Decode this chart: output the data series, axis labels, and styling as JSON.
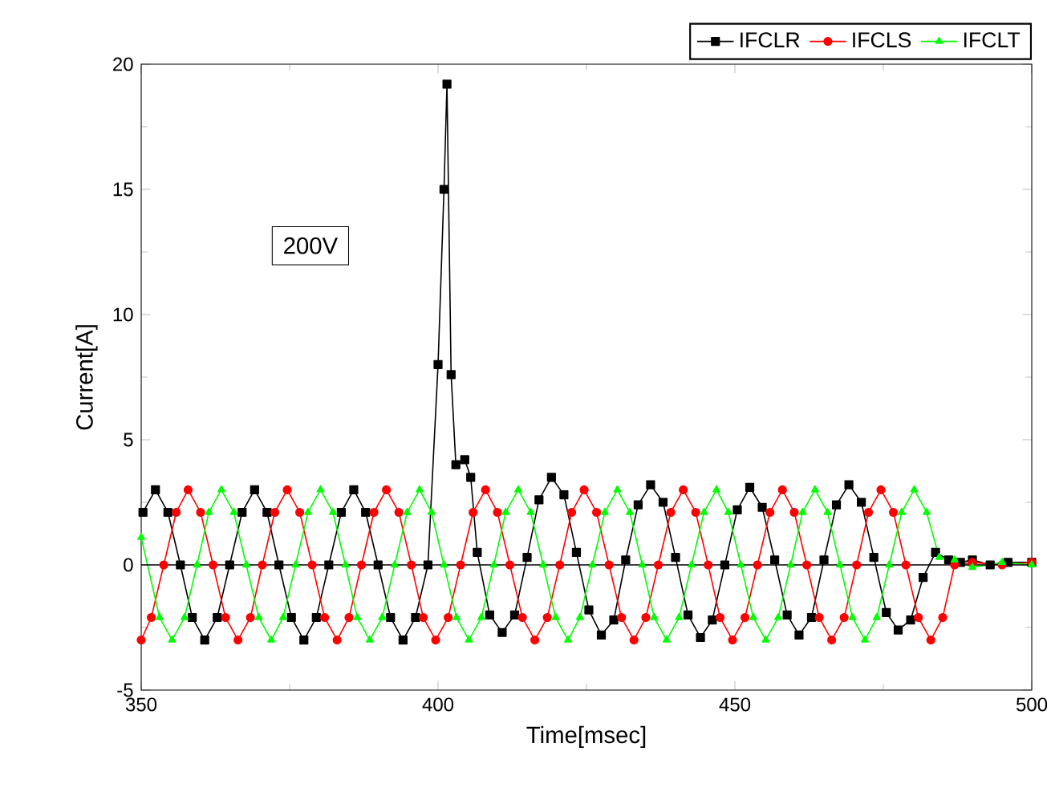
{
  "chart_data": {
    "type": "line",
    "xlabel": "Time[msec]",
    "ylabel": "Current[A]",
    "xlim": [
      350,
      500
    ],
    "xticks": [
      350,
      400,
      450,
      500
    ],
    "ylim": [
      -5,
      20
    ],
    "yticks": [
      -5,
      0,
      5,
      10,
      15,
      20
    ],
    "grid": false,
    "legend": "top right",
    "line_style": "solid",
    "annotations": [
      "200V"
    ],
    "ref_lines": [
      {
        "axis": "y",
        "value": 0,
        "color": "#000000"
      }
    ],
    "series": [
      {
        "name": "IFCLR",
        "color": "#000000",
        "marker": "square",
        "x": [
          350.3,
          352.4,
          354.5,
          356.6,
          358.6,
          360.7,
          362.8,
          364.9,
          367.0,
          369.1,
          371.2,
          373.2,
          375.3,
          377.4,
          379.5,
          381.6,
          383.7,
          385.8,
          387.8,
          389.9,
          392.0,
          394.1,
          396.2,
          398.3,
          400.0,
          401.0,
          401.5,
          402.2,
          403.0,
          404.5,
          405.5,
          406.6,
          408.7,
          410.8,
          412.9,
          415.0,
          417.0,
          419.1,
          421.2,
          423.3,
          425.4,
          427.5,
          429.6,
          431.6,
          433.7,
          435.8,
          437.9,
          440.0,
          442.1,
          444.2,
          446.2,
          448.3,
          450.4,
          452.5,
          454.6,
          456.7,
          458.8,
          460.8,
          462.9,
          465.0,
          467.1,
          469.2,
          471.3,
          473.4,
          475.5,
          477.5,
          479.6,
          481.7,
          483.8,
          486.0,
          488.0,
          490.0,
          493.0,
          496.0,
          500.0
        ],
        "values": [
          2.1,
          3,
          2.1,
          0,
          -2.1,
          -3,
          -2.1,
          0,
          2.1,
          3,
          2.1,
          0,
          -2.1,
          -3,
          -2.1,
          0,
          2.1,
          3,
          2.1,
          0,
          -2.1,
          -3,
          -2.1,
          0,
          8.0,
          15,
          19.2,
          7.6,
          4.0,
          4.2,
          3.5,
          0.5,
          -2.0,
          -2.7,
          -2.0,
          0.3,
          2.6,
          3.5,
          2.8,
          0.5,
          -1.8,
          -2.8,
          -2.2,
          0.2,
          2.4,
          3.2,
          2.5,
          0.3,
          -2.0,
          -2.9,
          -2.2,
          0,
          2.2,
          3.1,
          2.3,
          0.2,
          -2.0,
          -2.8,
          -2.1,
          0.2,
          2.4,
          3.2,
          2.5,
          0.3,
          -1.9,
          -2.6,
          -2.2,
          -0.5,
          0.5,
          0.2,
          0.1,
          0.2,
          0.0,
          0.1,
          0.1
        ]
      },
      {
        "name": "IFCLS",
        "color": "#ff0000",
        "marker": "circle",
        "x": [
          350.0,
          351.7,
          353.8,
          355.9,
          357.9,
          360.0,
          362.1,
          364.2,
          366.3,
          368.4,
          370.4,
          372.5,
          374.6,
          376.7,
          378.8,
          380.9,
          383.0,
          385.0,
          387.1,
          389.2,
          391.3,
          393.4,
          395.5,
          397.5,
          399.6,
          401.7,
          403.8,
          405.9,
          408.0,
          410.0,
          412.1,
          414.2,
          416.3,
          418.4,
          420.5,
          422.5,
          424.6,
          426.7,
          428.8,
          430.9,
          433.0,
          435.0,
          437.1,
          439.2,
          441.3,
          443.4,
          445.5,
          447.5,
          449.6,
          451.7,
          453.8,
          455.9,
          458.0,
          460.0,
          462.1,
          464.2,
          466.3,
          468.4,
          470.5,
          472.5,
          474.6,
          476.7,
          478.8,
          480.9,
          483.0,
          485.0,
          487.0,
          490.0,
          495.0,
          500.0
        ],
        "values": [
          -3,
          -2.1,
          0,
          2.1,
          3,
          2.1,
          0,
          -2.1,
          -3,
          -2.1,
          0,
          2.1,
          3,
          2.1,
          0,
          -2.1,
          -3,
          -2.1,
          0,
          2.1,
          3,
          2.1,
          0,
          -2.1,
          -3,
          -2.1,
          0,
          2.1,
          3,
          2.1,
          0,
          -2.1,
          -3,
          -2.1,
          0,
          2.1,
          3,
          2.1,
          0,
          -2.1,
          -3,
          -2.1,
          0,
          2.1,
          3,
          2.1,
          0,
          -2.1,
          -3,
          -2.1,
          0,
          2.1,
          3,
          2.1,
          0,
          -2.1,
          -3,
          -2.1,
          0,
          2.1,
          3,
          2.1,
          0,
          -2.1,
          -3,
          -2.1,
          0,
          0.1,
          0,
          0.1
        ]
      },
      {
        "name": "IFCLT",
        "color": "#00ff00",
        "marker": "triangle",
        "x": [
          350.0,
          353.1,
          355.2,
          357.3,
          359.4,
          361.4,
          363.5,
          365.6,
          367.7,
          369.8,
          371.9,
          373.9,
          376.0,
          378.1,
          380.2,
          382.3,
          384.4,
          386.4,
          388.5,
          390.6,
          392.7,
          394.8,
          396.9,
          398.9,
          401.0,
          403.1,
          405.2,
          407.3,
          409.4,
          411.4,
          413.5,
          415.6,
          417.7,
          419.8,
          421.9,
          423.9,
          426.0,
          428.1,
          430.2,
          432.3,
          434.4,
          436.4,
          438.5,
          440.6,
          442.7,
          444.8,
          446.9,
          448.9,
          451.0,
          453.1,
          455.2,
          457.3,
          459.4,
          461.4,
          463.5,
          465.6,
          467.7,
          469.8,
          471.9,
          473.9,
          476.0,
          478.1,
          480.2,
          482.3,
          484.4,
          487.0,
          490.0,
          495.0,
          500.0
        ],
        "values": [
          1.1,
          -2.1,
          -3,
          -2.1,
          0,
          2.1,
          3,
          2.1,
          0,
          -2.1,
          -3,
          -2.1,
          0,
          2.1,
          3,
          2.1,
          0,
          -2.1,
          -3,
          -2.1,
          0,
          2.1,
          3,
          2.1,
          0,
          -2.1,
          -3,
          -2.1,
          0,
          2.1,
          3,
          2.1,
          0,
          -2.1,
          -3,
          -2.1,
          0,
          2.1,
          3,
          2.1,
          0,
          -2.1,
          -3,
          -2.1,
          0,
          2.1,
          3,
          2.1,
          0,
          -2.1,
          -3,
          -2.1,
          0,
          2.1,
          3,
          2.1,
          0,
          -2.1,
          -3,
          -2.1,
          0,
          2.1,
          3,
          2.1,
          0.3,
          0.2,
          -0.1,
          0.1,
          0
        ]
      }
    ]
  }
}
